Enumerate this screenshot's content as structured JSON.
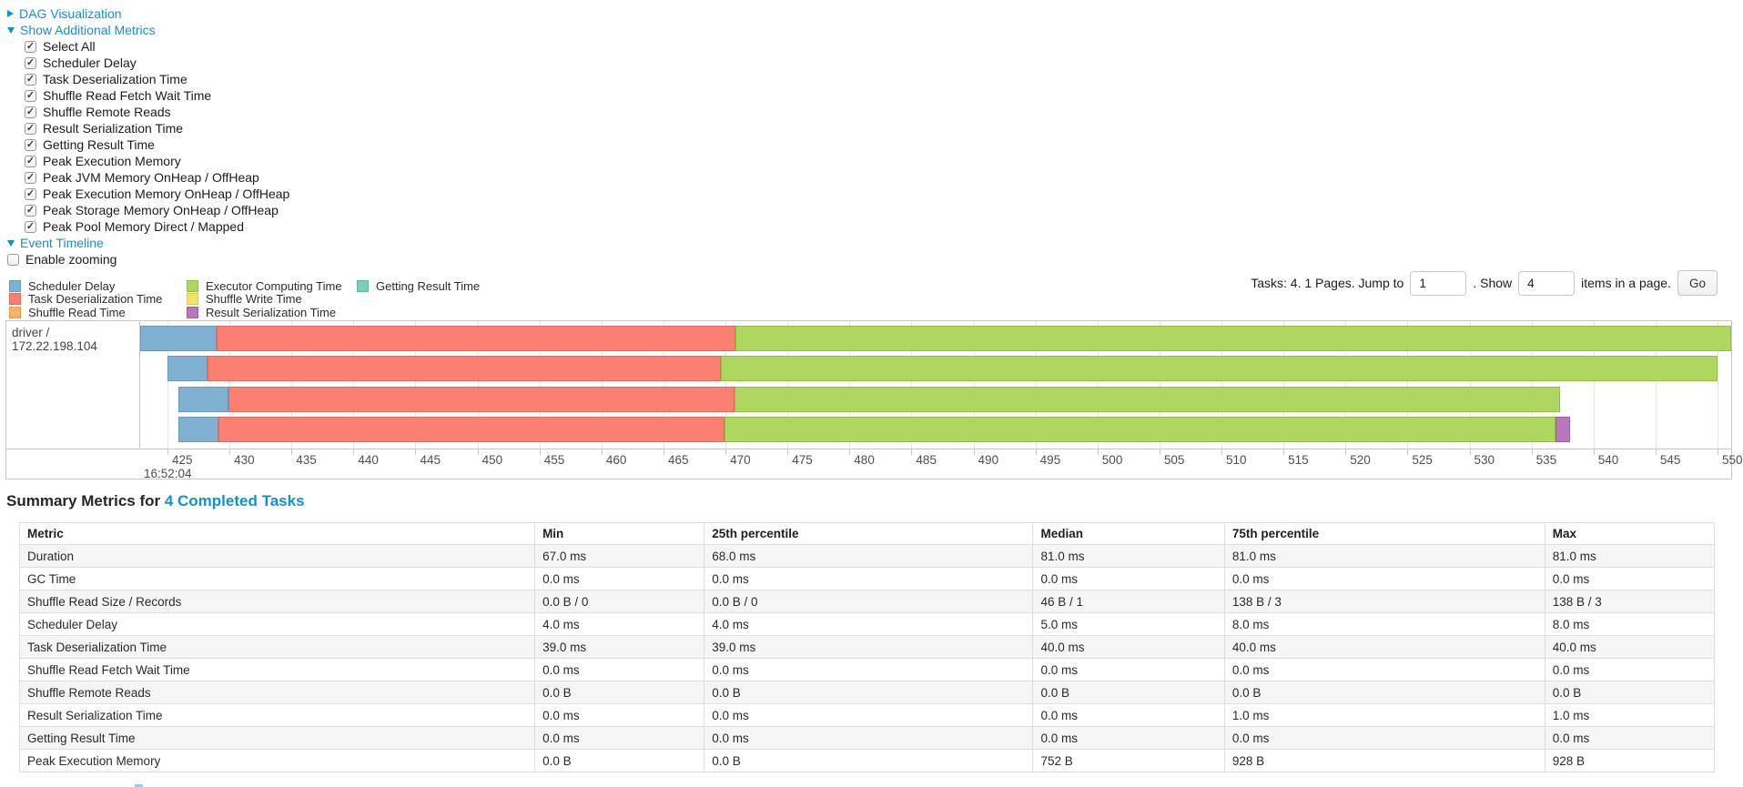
{
  "link_color": "#0f92d4",
  "toggles": {
    "dag": {
      "label": "DAG Visualization",
      "expanded": false
    },
    "metrics": {
      "label": "Show Additional Metrics",
      "expanded": true
    },
    "event_timeline": {
      "label": "Event Timeline",
      "expanded": true
    },
    "enable_zooming": {
      "label": "Enable zooming",
      "checked": false
    },
    "metric_checkboxes": [
      {
        "label": "Select All",
        "checked": true
      },
      {
        "label": "Scheduler Delay",
        "checked": true
      },
      {
        "label": "Task Deserialization Time",
        "checked": true
      },
      {
        "label": "Shuffle Read Fetch Wait Time",
        "checked": true
      },
      {
        "label": "Shuffle Remote Reads",
        "checked": true
      },
      {
        "label": "Result Serialization Time",
        "checked": true
      },
      {
        "label": "Getting Result Time",
        "checked": true
      },
      {
        "label": "Peak Execution Memory",
        "checked": true
      },
      {
        "label": "Peak JVM Memory OnHeap / OffHeap",
        "checked": true
      },
      {
        "label": "Peak Execution Memory OnHeap / OffHeap",
        "checked": true
      },
      {
        "label": "Peak Storage Memory OnHeap / OffHeap",
        "checked": true
      },
      {
        "label": "Peak Pool Memory Direct / Mapped",
        "checked": true
      }
    ]
  },
  "legend": {
    "columns": [
      [
        {
          "type": "scheduler_delay",
          "label": "Scheduler Delay",
          "color": "#80B1D3",
          "border": "#6898BD"
        },
        {
          "type": "task_deserialization",
          "label": "Task Deserialization Time",
          "color": "#FB8072",
          "border": "#E06A5E"
        },
        {
          "type": "shuffle_read",
          "label": "Shuffle Read Time",
          "color": "#FDB462",
          "border": "#E39A47"
        }
      ],
      [
        {
          "type": "executor_computing",
          "label": "Executor Computing Time",
          "color": "#AFD75F",
          "border": "#93BE44"
        },
        {
          "type": "shuffle_write",
          "label": "Shuffle Write Time",
          "color": "#F5E462",
          "border": "#DCC94E"
        },
        {
          "type": "result_serialization",
          "label": "Result Serialization Time",
          "color": "#B878BC",
          "border": "#9C5FA5"
        }
      ],
      [
        {
          "type": "getting_result",
          "label": "Getting Result Time",
          "color": "#7DCBBB",
          "border": "#62B3A4"
        }
      ]
    ]
  },
  "pagination": {
    "prefix": "Tasks: 4. 1 Pages. Jump to",
    "jump_value": "1",
    "mid": ". Show",
    "show_value": "4",
    "suffix": "items in a page.",
    "go_label": "Go"
  },
  "timeline": {
    "row_label": "driver / 172.22.198.104",
    "axis": {
      "domain_start": 422.8,
      "domain_end": 551.1,
      "ticks": [
        425,
        430,
        435,
        440,
        445,
        450,
        455,
        460,
        465,
        470,
        475,
        480,
        485,
        490,
        495,
        500,
        505,
        510,
        515,
        520,
        525,
        530,
        535,
        540,
        545,
        550
      ],
      "major_label": "16:52:04"
    },
    "tasks": [
      {
        "segments": [
          {
            "type": "scheduler_delay",
            "start": 422.6,
            "end": 429.0
          },
          {
            "type": "task_deserialization",
            "start": 429.0,
            "end": 470.8
          },
          {
            "type": "executor_computing",
            "start": 470.8,
            "end": 551.5
          }
        ]
      },
      {
        "segments": [
          {
            "type": "scheduler_delay",
            "start": 425.0,
            "end": 428.2
          },
          {
            "type": "task_deserialization",
            "start": 428.2,
            "end": 469.6
          },
          {
            "type": "executor_computing",
            "start": 469.6,
            "end": 550.0
          }
        ]
      },
      {
        "segments": [
          {
            "type": "scheduler_delay",
            "start": 425.9,
            "end": 429.9
          },
          {
            "type": "task_deserialization",
            "start": 429.9,
            "end": 470.7
          },
          {
            "type": "executor_computing",
            "start": 470.7,
            "end": 537.3
          }
        ]
      },
      {
        "segments": [
          {
            "type": "scheduler_delay",
            "start": 425.9,
            "end": 429.1
          },
          {
            "type": "task_deserialization",
            "start": 429.1,
            "end": 469.9
          },
          {
            "type": "executor_computing",
            "start": 469.9,
            "end": 536.9
          },
          {
            "type": "result_serialization",
            "start": 536.9,
            "end": 538.1
          }
        ]
      }
    ]
  },
  "summary": {
    "title_prefix": "Summary Metrics for ",
    "title_link": "4 Completed Tasks",
    "table": {
      "headers": [
        "Metric",
        "Min",
        "25th percentile",
        "Median",
        "75th percentile",
        "Max"
      ],
      "rows": [
        [
          "Duration",
          "67.0 ms",
          "68.0 ms",
          "81.0 ms",
          "81.0 ms",
          "81.0 ms"
        ],
        [
          "GC Time",
          "0.0 ms",
          "0.0 ms",
          "0.0 ms",
          "0.0 ms",
          "0.0 ms"
        ],
        [
          "Shuffle Read Size / Records",
          "0.0 B / 0",
          "0.0 B / 0",
          "46 B / 1",
          "138 B / 3",
          "138 B / 3"
        ],
        [
          "Scheduler Delay",
          "4.0 ms",
          "4.0 ms",
          "5.0 ms",
          "8.0 ms",
          "8.0 ms"
        ],
        [
          "Task Deserialization Time",
          "39.0 ms",
          "39.0 ms",
          "40.0 ms",
          "40.0 ms",
          "40.0 ms"
        ],
        [
          "Shuffle Read Fetch Wait Time",
          "0.0 ms",
          "0.0 ms",
          "0.0 ms",
          "0.0 ms",
          "0.0 ms"
        ],
        [
          "Shuffle Remote Reads",
          "0.0 B",
          "0.0 B",
          "0.0 B",
          "0.0 B",
          "0.0 B"
        ],
        [
          "Result Serialization Time",
          "0.0 ms",
          "0.0 ms",
          "0.0 ms",
          "1.0 ms",
          "1.0 ms"
        ],
        [
          "Getting Result Time",
          "0.0 ms",
          "0.0 ms",
          "0.0 ms",
          "0.0 ms",
          "0.0 ms"
        ],
        [
          "Peak Execution Memory",
          "0.0 B",
          "0.0 B",
          "752 B",
          "928 B",
          "928 B"
        ]
      ]
    }
  }
}
